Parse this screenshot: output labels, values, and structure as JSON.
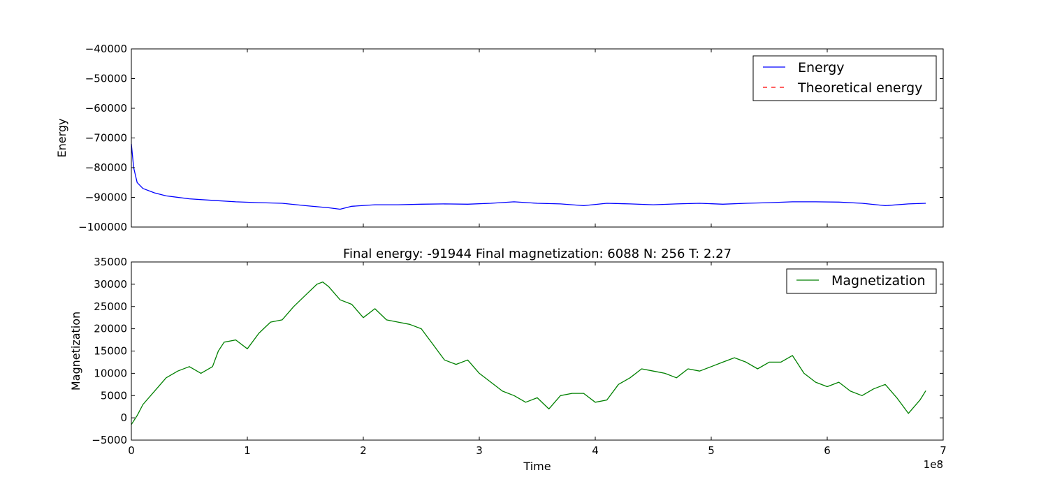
{
  "chart_data": [
    {
      "type": "line",
      "ylabel": "Energy",
      "ylim": [
        -100000,
        -40000
      ],
      "yticks": [
        -40000,
        -50000,
        -60000,
        -70000,
        -80000,
        -90000,
        -100000
      ],
      "ytick_labels": [
        "−40000",
        "−50000",
        "−60000",
        "−70000",
        "−80000",
        "−90000",
        "−100000"
      ],
      "xlim": [
        0,
        7
      ],
      "x_tick_labels_shown": false,
      "legend": {
        "position": "top-right",
        "entries": [
          "Energy",
          "Theoretical energy"
        ]
      },
      "series": [
        {
          "name": "Energy",
          "color": "#0000ff",
          "style": "solid",
          "x": [
            0,
            0.02,
            0.05,
            0.1,
            0.2,
            0.3,
            0.5,
            0.7,
            0.9,
            1.1,
            1.3,
            1.5,
            1.7,
            1.8,
            1.9,
            2.1,
            2.3,
            2.5,
            2.7,
            2.9,
            3.1,
            3.3,
            3.5,
            3.7,
            3.9,
            4.1,
            4.3,
            4.5,
            4.7,
            4.9,
            5.1,
            5.3,
            5.5,
            5.7,
            5.9,
            6.1,
            6.3,
            6.5,
            6.7,
            6.85
          ],
          "y": [
            -72000,
            -80000,
            -85000,
            -87000,
            -88500,
            -89500,
            -90500,
            -91000,
            -91500,
            -91800,
            -92000,
            -92800,
            -93500,
            -94000,
            -93000,
            -92500,
            -92500,
            -92300,
            -92200,
            -92300,
            -92000,
            -91500,
            -92000,
            -92200,
            -92800,
            -92000,
            -92200,
            -92500,
            -92200,
            -92000,
            -92300,
            -92000,
            -91800,
            -91500,
            -91500,
            -91600,
            -92000,
            -92800,
            -92200,
            -92000
          ]
        },
        {
          "name": "Theoretical energy",
          "color": "#ff0000",
          "style": "dashed",
          "x": [],
          "y": []
        }
      ]
    },
    {
      "type": "line",
      "title": "Final energy: -91944 Final magnetization: 6088 N: 256 T: 2.27",
      "xlabel": "Time",
      "ylabel": "Magnetization",
      "xlim": [
        0,
        7
      ],
      "xticks": [
        0,
        1,
        2,
        3,
        4,
        5,
        6,
        7
      ],
      "xtick_labels": [
        "0",
        "1",
        "2",
        "3",
        "4",
        "5",
        "6",
        "7"
      ],
      "x_offset_label": "1e8",
      "ylim": [
        -5000,
        35000
      ],
      "yticks": [
        35000,
        30000,
        25000,
        20000,
        15000,
        10000,
        5000,
        0,
        -5000
      ],
      "ytick_labels": [
        "35000",
        "30000",
        "25000",
        "20000",
        "15000",
        "10000",
        "5000",
        "0",
        "−5000"
      ],
      "legend": {
        "position": "top-right",
        "entries": [
          "Magnetization"
        ]
      },
      "series": [
        {
          "name": "Magnetization",
          "color": "#008000",
          "style": "solid",
          "x": [
            0,
            0.05,
            0.1,
            0.2,
            0.3,
            0.4,
            0.5,
            0.6,
            0.7,
            0.75,
            0.8,
            0.9,
            1.0,
            1.1,
            1.2,
            1.3,
            1.4,
            1.5,
            1.6,
            1.65,
            1.7,
            1.8,
            1.9,
            2.0,
            2.1,
            2.2,
            2.3,
            2.4,
            2.5,
            2.6,
            2.7,
            2.8,
            2.9,
            3.0,
            3.1,
            3.2,
            3.3,
            3.4,
            3.5,
            3.6,
            3.7,
            3.8,
            3.9,
            4.0,
            4.1,
            4.2,
            4.3,
            4.4,
            4.5,
            4.6,
            4.7,
            4.8,
            4.9,
            5.0,
            5.1,
            5.2,
            5.3,
            5.4,
            5.5,
            5.6,
            5.7,
            5.8,
            5.9,
            6.0,
            6.1,
            6.2,
            6.3,
            6.4,
            6.5,
            6.6,
            6.7,
            6.8,
            6.85
          ],
          "y": [
            -1500,
            500,
            3000,
            6000,
            9000,
            10500,
            11500,
            10000,
            11500,
            15000,
            17000,
            17500,
            15500,
            19000,
            21500,
            22000,
            25000,
            27500,
            30000,
            30500,
            29500,
            26500,
            25500,
            22500,
            24500,
            22000,
            21500,
            21000,
            20000,
            16500,
            13000,
            12000,
            13000,
            10000,
            8000,
            6000,
            5000,
            3500,
            4500,
            2000,
            5000,
            5500,
            5500,
            3500,
            4000,
            7500,
            9000,
            11000,
            10500,
            10000,
            9000,
            11000,
            10500,
            11500,
            12500,
            13500,
            12500,
            11000,
            12500,
            12500,
            14000,
            10000,
            8000,
            7000,
            8000,
            6000,
            5000,
            6500,
            7500,
            4500,
            1000,
            4000,
            6088
          ]
        }
      ]
    }
  ]
}
